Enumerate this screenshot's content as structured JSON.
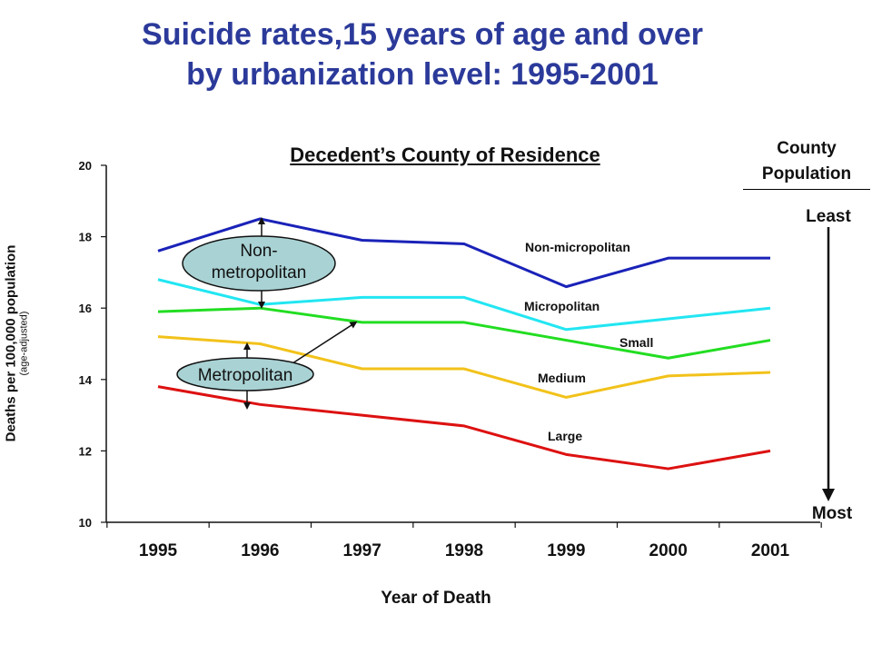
{
  "slide": {
    "title_line1": "Suicide rates,15 years of age and over",
    "title_line2": "by urbanization level: 1995-2001",
    "subtitle": "Decedent’s County of Residence",
    "county_population_line1": "County",
    "county_population_line2": "Population",
    "scale_top": "Least",
    "scale_bottom": "Most"
  },
  "annotations": {
    "nonmetro_line1": "Non-",
    "nonmetro_line2": "metropolitan",
    "metro": "Metropolitan"
  },
  "chart_data": {
    "type": "line",
    "x": [
      "1995",
      "1996",
      "1997",
      "1998",
      "1999",
      "2000",
      "2001"
    ],
    "xlabel": "Year of Death",
    "ylabel": "Deaths per 100,000 population",
    "ylabel_sub": "(age-adjusted)",
    "ylim": [
      10,
      20
    ],
    "yticks": [
      10,
      12,
      14,
      16,
      18,
      20
    ],
    "grid": false,
    "series": [
      {
        "name": "Non-micropolitan",
        "color": "#1a22b8",
        "values": [
          17.6,
          18.5,
          17.9,
          17.8,
          16.6,
          17.4,
          17.4
        ]
      },
      {
        "name": "Micropolitan",
        "color": "#22e6f2",
        "values": [
          16.8,
          16.1,
          16.3,
          16.3,
          15.4,
          15.7,
          16.0
        ]
      },
      {
        "name": "Small",
        "color": "#22dd22",
        "values": [
          15.9,
          16.0,
          15.6,
          15.6,
          15.1,
          14.6,
          15.1
        ]
      },
      {
        "name": "Medium",
        "color": "#f2c21a",
        "values": [
          15.2,
          15.0,
          14.3,
          14.3,
          13.5,
          14.1,
          14.2
        ]
      },
      {
        "name": "Large",
        "color": "#dd1111",
        "values": [
          13.8,
          13.3,
          13.0,
          12.7,
          11.9,
          11.5,
          12.0
        ]
      }
    ]
  }
}
